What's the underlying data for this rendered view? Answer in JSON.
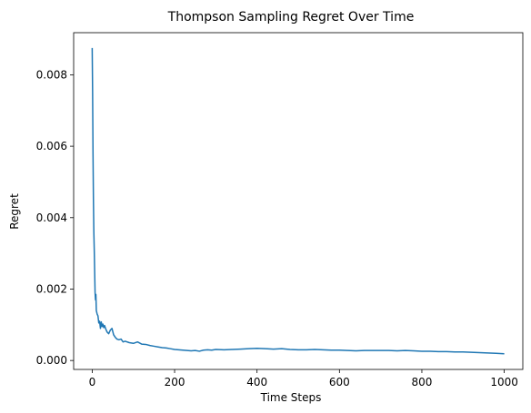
{
  "chart_data": {
    "type": "line",
    "title": "Thompson Sampling Regret Over Time",
    "xlabel": "Time Steps",
    "ylabel": "Regret",
    "xlim": [
      -45,
      1045
    ],
    "ylim": [
      -0.00025,
      0.00918
    ],
    "xticks": [
      0,
      200,
      400,
      600,
      800,
      1000
    ],
    "xtick_labels": [
      "0",
      "200",
      "400",
      "600",
      "800",
      "1000"
    ],
    "yticks": [
      0.0,
      0.002,
      0.004,
      0.006,
      0.008
    ],
    "ytick_labels": [
      "0.000",
      "0.002",
      "0.004",
      "0.006",
      "0.008"
    ],
    "grid": false,
    "series": [
      {
        "color": "#1f77b4",
        "x": [
          0,
          1,
          2,
          3,
          4,
          5,
          6,
          7,
          8,
          9,
          10,
          12,
          14,
          16,
          18,
          20,
          22,
          24,
          26,
          28,
          30,
          33,
          36,
          40,
          44,
          48,
          52,
          56,
          60,
          65,
          70,
          75,
          80,
          90,
          100,
          110,
          120,
          130,
          140,
          150,
          160,
          170,
          180,
          190,
          200,
          210,
          220,
          230,
          240,
          250,
          260,
          270,
          280,
          290,
          300,
          320,
          340,
          360,
          380,
          400,
          420,
          440,
          460,
          480,
          500,
          520,
          540,
          560,
          580,
          600,
          620,
          640,
          660,
          680,
          700,
          720,
          740,
          760,
          780,
          800,
          820,
          840,
          860,
          880,
          900,
          920,
          940,
          960,
          980,
          1000
        ],
        "y": [
          0.00875,
          0.0075,
          0.0058,
          0.0045,
          0.0036,
          0.0031,
          0.0025,
          0.0019,
          0.0017,
          0.00185,
          0.0014,
          0.0013,
          0.00125,
          0.00105,
          0.0011,
          0.0009,
          0.00108,
          0.00095,
          0.00102,
          0.00092,
          0.00098,
          0.00088,
          0.0008,
          0.00075,
          0.00085,
          0.0009,
          0.00072,
          0.00065,
          0.0006,
          0.00058,
          0.0006,
          0.00052,
          0.00054,
          0.0005,
          0.00048,
          0.00052,
          0.00046,
          0.00045,
          0.00042,
          0.0004,
          0.00038,
          0.00036,
          0.00035,
          0.00033,
          0.00031,
          0.0003,
          0.00029,
          0.00028,
          0.00027,
          0.00028,
          0.00026,
          0.00029,
          0.0003,
          0.00029,
          0.00031,
          0.0003,
          0.00031,
          0.00032,
          0.00033,
          0.00034,
          0.00033,
          0.00032,
          0.00033,
          0.00031,
          0.0003,
          0.0003,
          0.00031,
          0.0003,
          0.00029,
          0.00029,
          0.00028,
          0.00027,
          0.00028,
          0.00028,
          0.00028,
          0.00028,
          0.00027,
          0.00028,
          0.00027,
          0.00026,
          0.00026,
          0.00025,
          0.00025,
          0.00024,
          0.00024,
          0.00023,
          0.00022,
          0.00021,
          0.0002,
          0.00019
        ]
      }
    ]
  }
}
